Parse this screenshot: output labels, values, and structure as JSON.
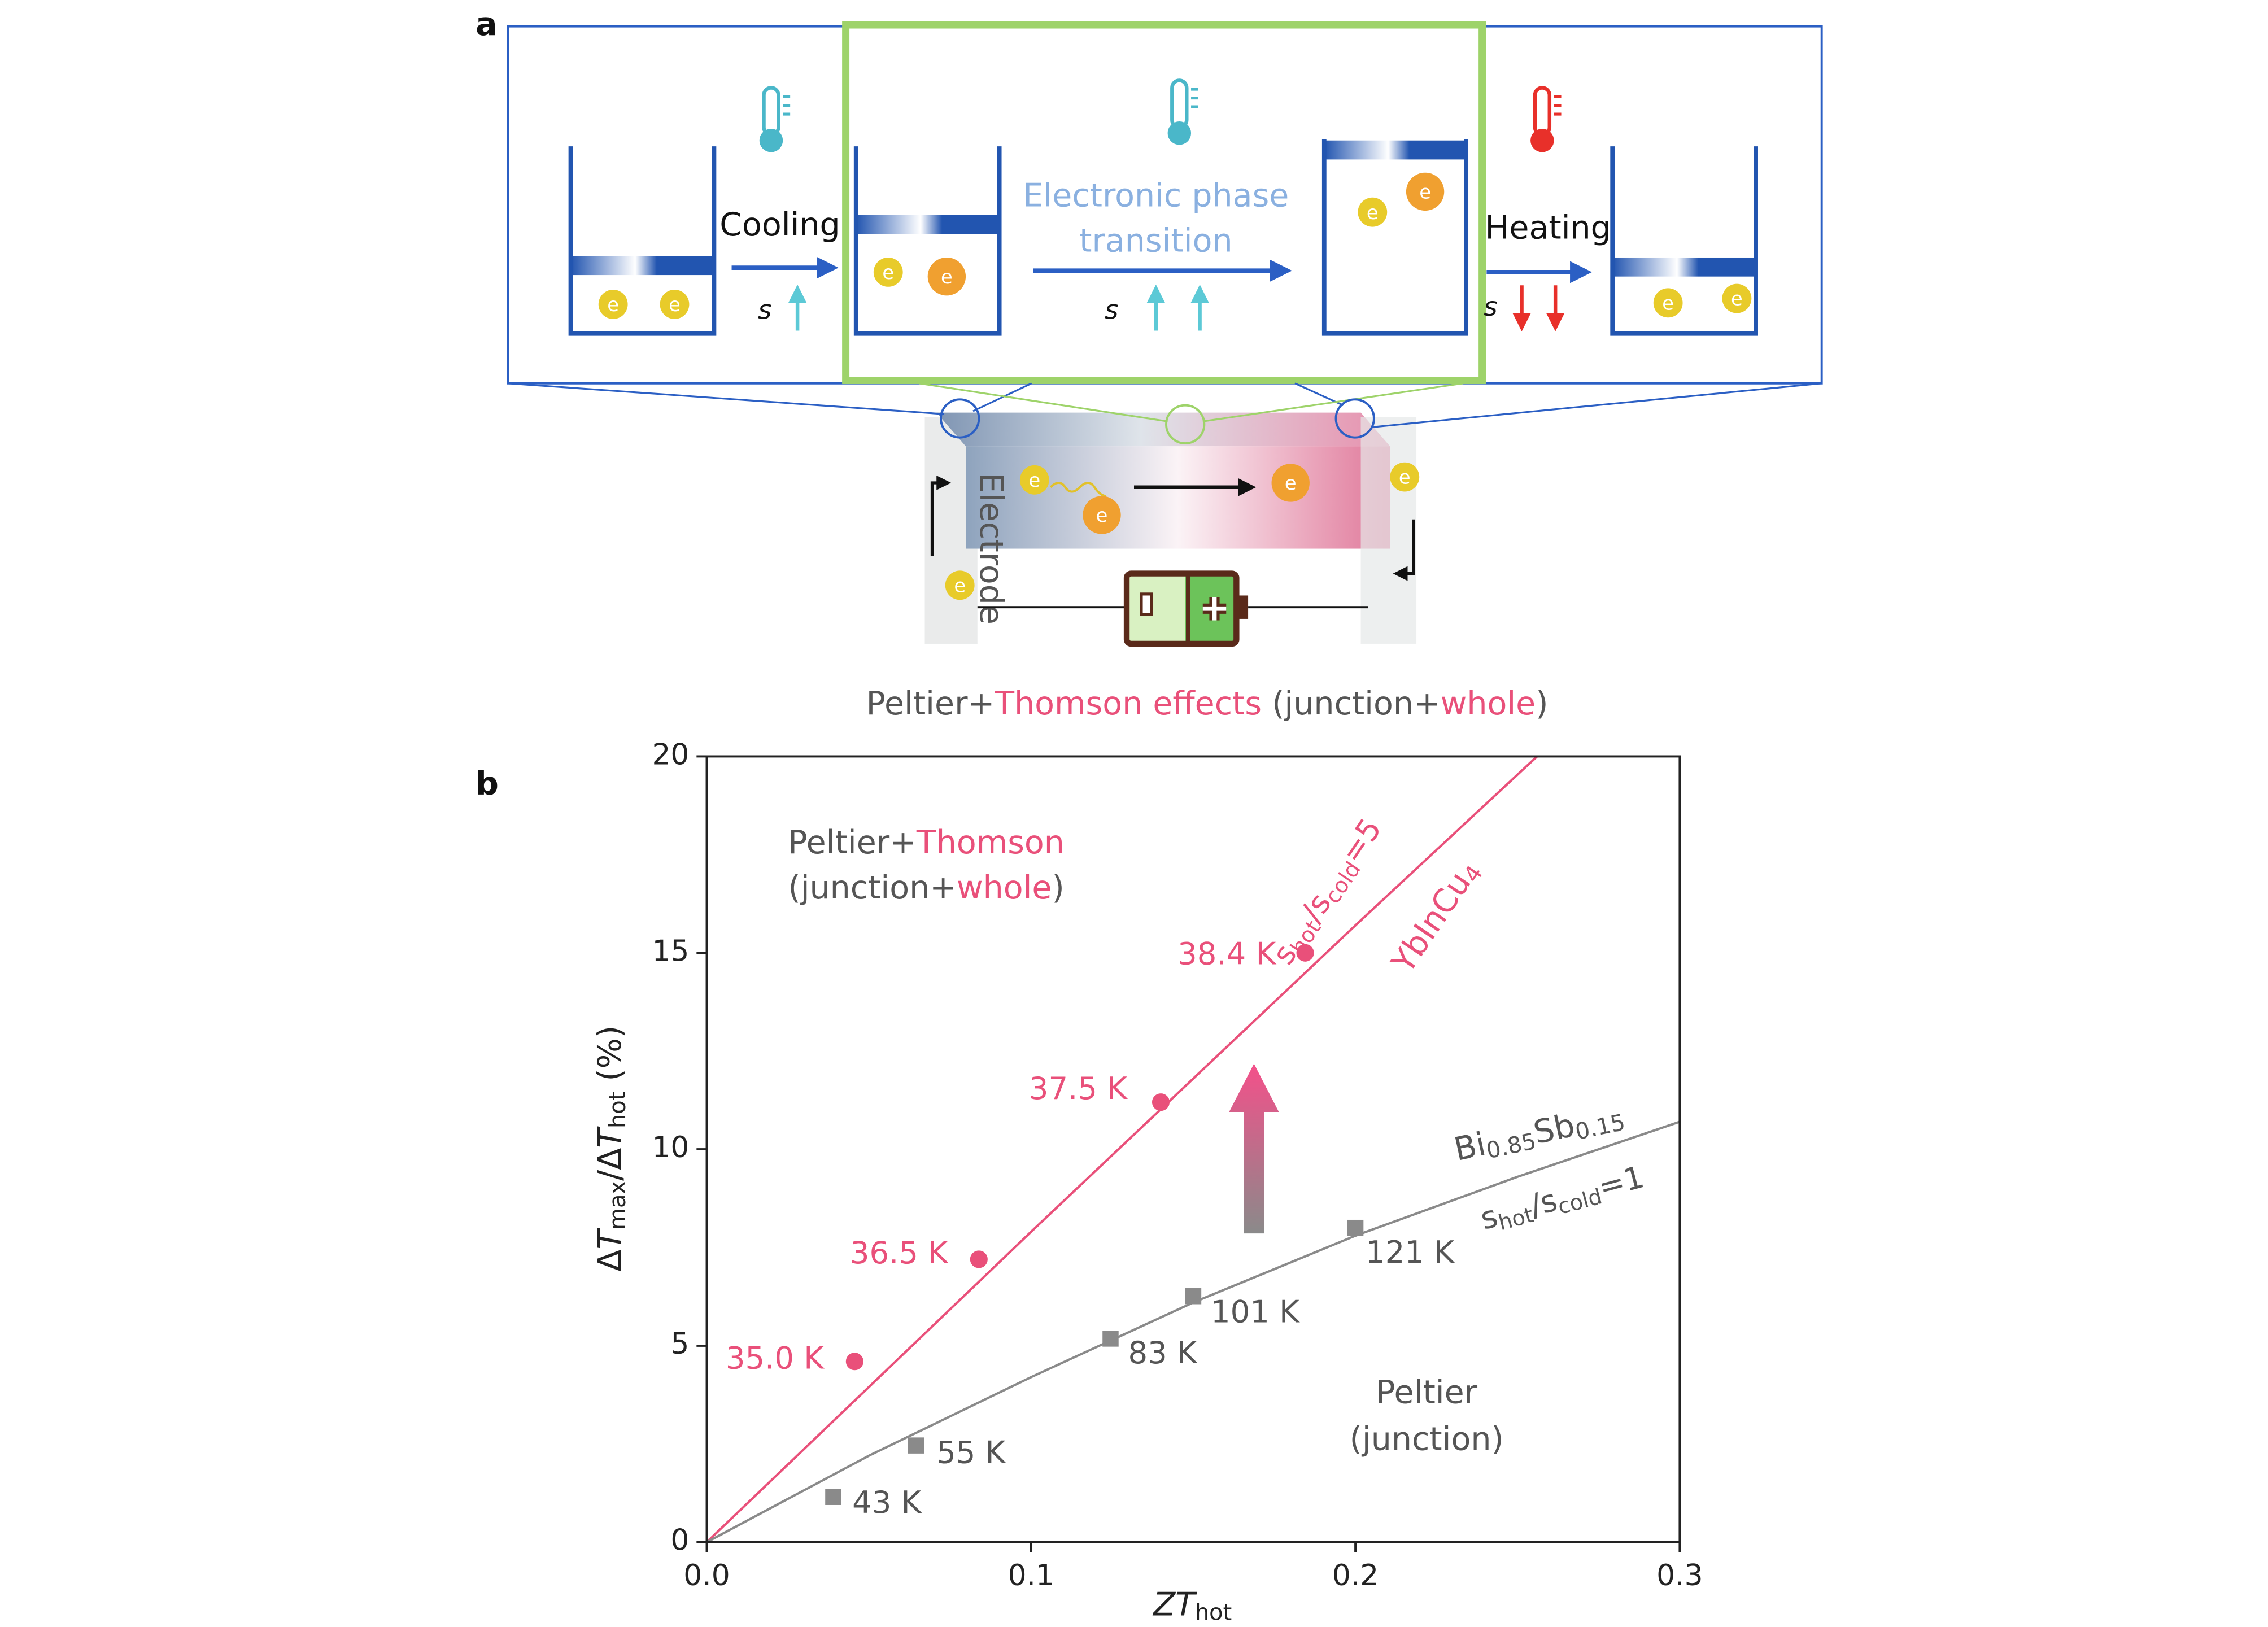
{
  "panels": [
    "a",
    "b"
  ],
  "diagram": {
    "electron": "e",
    "entropy": "s",
    "cooling": "Cooling",
    "heating": "Heating",
    "transition": [
      "Electronic phase",
      "transition"
    ],
    "electrode": "Electrode",
    "caption": [
      "Peltier+",
      "Thomson effects",
      " (junction+",
      "whole",
      ")"
    ]
  },
  "chart_data": {
    "type": "scatter",
    "xlabel": [
      "ZT",
      "hot"
    ],
    "ylabel": [
      "Δ",
      "T",
      "max",
      "/Δ",
      "T",
      "hot",
      " (%)"
    ],
    "xlim": [
      0,
      0.3
    ],
    "xticks": [
      {
        "value": 0,
        "label": "0.0"
      },
      0.1,
      0.2,
      0.3
    ],
    "ylim": [
      0,
      20
    ],
    "yticks": [
      0,
      5,
      10,
      15,
      20
    ],
    "series": [
      {
        "label": [
          "YbInCu",
          "4"
        ],
        "ratio": [
          "s",
          "hot",
          "/s",
          "cold",
          "=5"
        ],
        "color": "#e9507a",
        "marker": "circle",
        "x": [
          0.0456,
          0.0839,
          0.14,
          0.1845
        ],
        "values": [
          4.6,
          7.2,
          11.2,
          15.0
        ],
        "point_labels": [
          "35.0 K",
          "36.5 K",
          "37.5 K",
          "38.4 K"
        ],
        "fit_x": [
          0,
          0.1,
          0.2,
          0.256
        ],
        "fit_values": [
          0,
          7.9,
          15.7,
          20
        ]
      },
      {
        "label": [
          "Bi",
          "0.85",
          "Sb",
          "0.15"
        ],
        "ratio": [
          "s",
          "hot",
          "/s",
          "cold",
          "=1"
        ],
        "color": "#8a8a8a",
        "marker": "square",
        "x": [
          0.039,
          0.0645,
          0.1245,
          0.15,
          0.2
        ],
        "values": [
          1.15,
          2.46,
          5.18,
          6.26,
          8.0
        ],
        "point_labels": [
          "43 K",
          "55 K",
          "83 K",
          "101 K",
          "121 K"
        ],
        "fit_x": [
          0,
          0.05,
          0.1,
          0.15,
          0.2,
          0.25,
          0.3
        ],
        "fit_values": [
          0,
          2.2,
          4.2,
          6.1,
          7.8,
          9.3,
          10.7
        ]
      }
    ],
    "region_upper": [
      [
        "Peltier+",
        "Thomson"
      ],
      [
        "(junction+",
        "whole",
        ")"
      ]
    ],
    "region_lower": [
      "Peltier",
      "(junction)"
    ]
  }
}
